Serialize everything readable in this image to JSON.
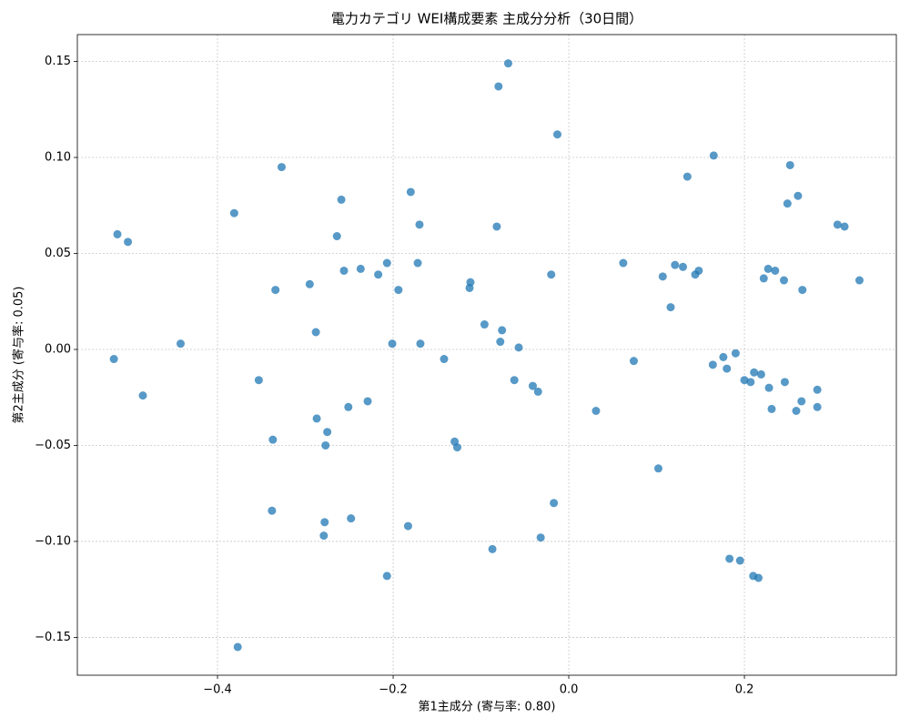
{
  "chart_data": {
    "type": "scatter",
    "title": "電力カテゴリ WEI構成要素 主成分分析（30日間）",
    "xlabel": "第1主成分 (寄与率: 0.80)",
    "ylabel": "第2主成分 (寄与率: 0.05)",
    "color": "#1f77b4",
    "grid": true,
    "xlim": [
      -0.5596,
      0.373
    ],
    "ylim": [
      -0.1697,
      0.164
    ],
    "xticks": [
      {
        "value": -0.4,
        "label": "−0.4"
      },
      {
        "value": -0.2,
        "label": "−0.2"
      },
      {
        "value": 0,
        "label": "0.0"
      },
      {
        "value": 0.2,
        "label": "0.2"
      }
    ],
    "yticks": [
      {
        "value": -0.15,
        "label": "−0.15"
      },
      {
        "value": -0.1,
        "label": "−0.10"
      },
      {
        "value": -0.05,
        "label": "−0.05"
      },
      {
        "value": 0,
        "label": "0.00"
      },
      {
        "value": 0.05,
        "label": "0.05"
      },
      {
        "value": 0.1,
        "label": "0.10"
      },
      0.15
    ],
    "x": [
      -0.069,
      -0.08,
      -0.013,
      0.165,
      0.252,
      0.135,
      -0.327,
      0.261,
      -0.18,
      -0.259,
      0.249,
      -0.381,
      0.306,
      0.314,
      -0.17,
      -0.082,
      -0.514,
      -0.502,
      -0.264,
      0.062,
      -0.207,
      -0.172,
      0.121,
      0.13,
      -0.256,
      -0.237,
      -0.217,
      -0.02,
      0.148,
      0.144,
      0.107,
      0.227,
      0.235,
      0.222,
      0.245,
      0.331,
      0.266,
      -0.112,
      -0.113,
      -0.295,
      -0.334,
      -0.194,
      0.116,
      -0.096,
      -0.076,
      -0.288,
      -0.442,
      -0.201,
      -0.169,
      -0.078,
      -0.057,
      -0.518,
      -0.142,
      0.074,
      0.176,
      0.19,
      0.164,
      0.18,
      0.211,
      0.219,
      0.2,
      0.207,
      0.246,
      -0.353,
      -0.062,
      -0.041,
      -0.035,
      0.228,
      0.283,
      -0.485,
      -0.229,
      0.265,
      -0.251,
      0.283,
      0.231,
      0.259,
      0.031,
      -0.287,
      -0.275,
      -0.337,
      -0.13,
      -0.127,
      -0.277,
      0.102,
      -0.017,
      -0.338,
      -0.248,
      -0.278,
      -0.183,
      -0.279,
      -0.032,
      -0.087,
      0.183,
      0.195,
      0.21,
      0.216,
      -0.207,
      -0.377
    ],
    "values": [
      0.149,
      0.137,
      0.112,
      0.101,
      0.096,
      0.09,
      0.095,
      0.08,
      0.082,
      0.078,
      0.076,
      0.071,
      0.065,
      0.064,
      0.065,
      0.064,
      0.06,
      0.056,
      0.059,
      0.045,
      0.045,
      0.045,
      0.044,
      0.043,
      0.041,
      0.042,
      0.039,
      0.039,
      0.041,
      0.039,
      0.038,
      0.042,
      0.041,
      0.037,
      0.036,
      0.036,
      0.031,
      0.035,
      0.032,
      0.034,
      0.031,
      0.031,
      0.022,
      0.013,
      0.01,
      0.009,
      0.003,
      0.003,
      0.003,
      0.004,
      0.001,
      -0.005,
      -0.005,
      -0.006,
      -0.004,
      -0.002,
      -0.008,
      -0.01,
      -0.012,
      -0.013,
      -0.016,
      -0.017,
      -0.017,
      -0.016,
      -0.016,
      -0.019,
      -0.022,
      -0.02,
      -0.021,
      -0.024,
      -0.027,
      -0.027,
      -0.03,
      -0.03,
      -0.031,
      -0.032,
      -0.032,
      -0.036,
      -0.043,
      -0.047,
      -0.048,
      -0.051,
      -0.05,
      -0.062,
      -0.08,
      -0.084,
      -0.088,
      -0.09,
      -0.092,
      -0.097,
      -0.098,
      -0.104,
      -0.109,
      -0.11,
      -0.118,
      -0.119,
      -0.118,
      -0.155
    ]
  }
}
